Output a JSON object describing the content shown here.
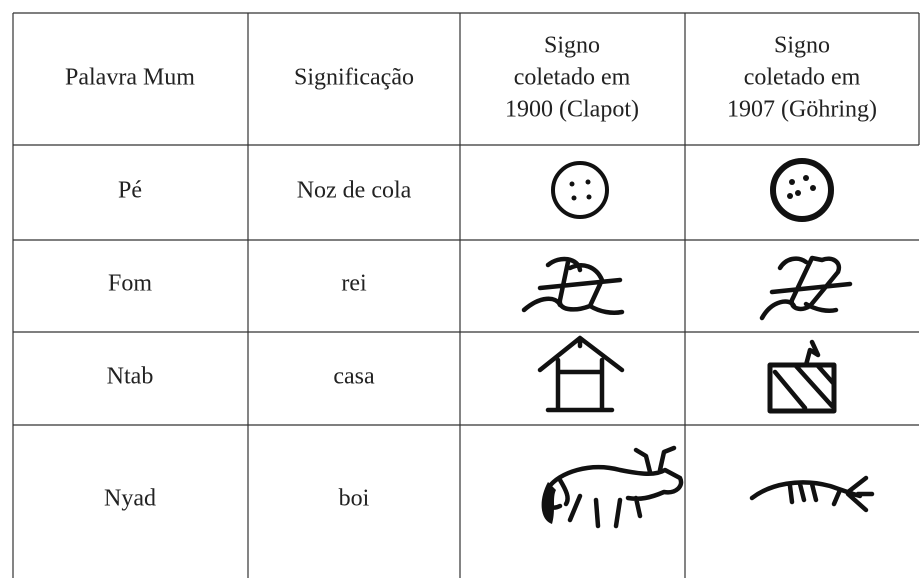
{
  "table": {
    "header": [
      [
        "Palavra Mum"
      ],
      [
        "Significação"
      ],
      [
        "Signo",
        "coletado em",
        "1900 (Clapot)"
      ],
      [
        "Signo",
        "coletado em",
        "1907 (Göhring)"
      ]
    ],
    "rows": [
      [
        "Pé",
        "Noz de cola"
      ],
      [
        "Fom",
        "rei"
      ],
      [
        "Ntab",
        "casa"
      ],
      [
        "Nyad",
        "boi"
      ]
    ]
  }
}
